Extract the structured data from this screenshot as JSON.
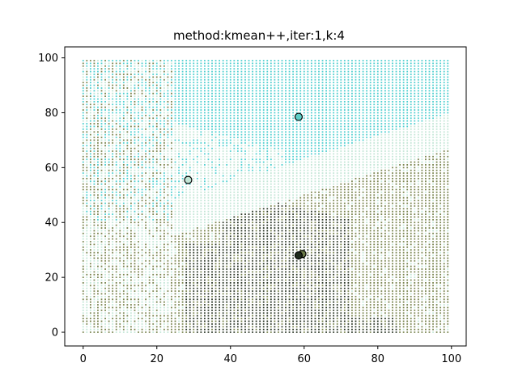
{
  "chart_data": {
    "type": "scatter",
    "title": "method:kmean++,iter:1,k:4",
    "xlabel": "",
    "ylabel": "",
    "xlim": [
      -5,
      104
    ],
    "ylim": [
      -5,
      104
    ],
    "xticks": [
      0,
      20,
      40,
      60,
      80,
      100
    ],
    "yticks": [
      0,
      20,
      40,
      60,
      80,
      100
    ],
    "grid": false,
    "grid_points": {
      "x_range": [
        0,
        99
      ],
      "y_range": [
        0,
        99
      ],
      "step": 1,
      "description": "every integer point in [0,99]x[0,99] colored by assigned cluster"
    },
    "clusters": [
      {
        "name": "cluster-cyan",
        "color": "#4fcfcf"
      },
      {
        "name": "cluster-lightgreen",
        "color": "#c3e6d6"
      },
      {
        "name": "cluster-olive",
        "color": "#7a8550"
      },
      {
        "name": "cluster-dark",
        "color": "#2e3a2a"
      }
    ],
    "centroids": [
      {
        "x": 58.5,
        "y": 78.5,
        "color": "#5fcfc8"
      },
      {
        "x": 28.5,
        "y": 55.5,
        "color": "#c3e6d6"
      },
      {
        "x": 59.5,
        "y": 28.5,
        "color": "#6b7a48"
      },
      {
        "x": 58.5,
        "y": 28.0,
        "color": "#1f2a1c"
      }
    ]
  }
}
